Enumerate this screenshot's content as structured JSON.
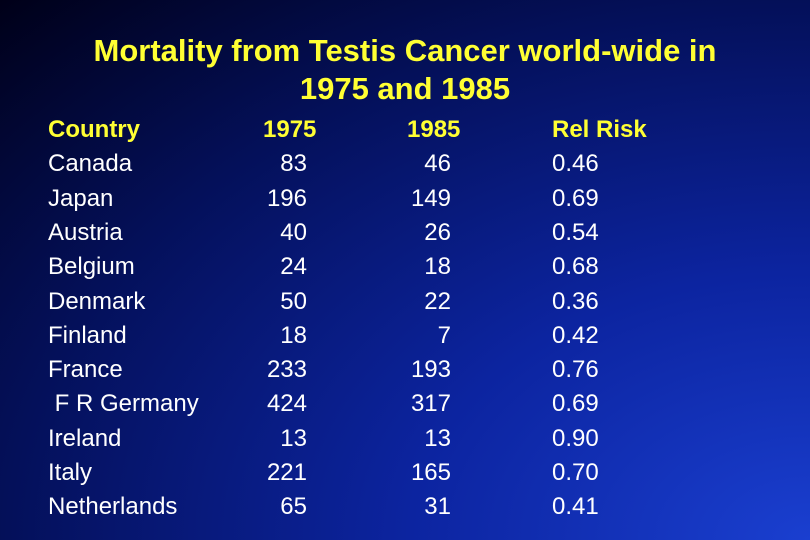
{
  "header": {
    "title_lines": [
      "Mortality from Testis Cancer world-wide in",
      "1975 and 1985"
    ]
  },
  "table": {
    "columns": [
      "Country",
      "1975",
      "1985",
      "Rel Risk"
    ],
    "rows": [
      [
        "Canada",
        "83",
        "46",
        "0.46"
      ],
      [
        "Japan",
        "196",
        "149",
        "0.69"
      ],
      [
        "Austria",
        "40",
        "26",
        "0.54"
      ],
      [
        "Belgium",
        "24",
        "18",
        "0.68"
      ],
      [
        "Denmark",
        "50",
        "22",
        "0.36"
      ],
      [
        "Finland",
        "18",
        "7",
        "0.42"
      ],
      [
        "France",
        "233",
        "193",
        "0.76"
      ],
      [
        " F R Germany",
        "424",
        "317",
        "0.69"
      ],
      [
        "Ireland",
        "13",
        "13",
        "0.90"
      ],
      [
        "Italy",
        "221",
        "165",
        "0.70"
      ],
      [
        "Netherlands",
        "65",
        "31",
        "0.41"
      ]
    ]
  }
}
